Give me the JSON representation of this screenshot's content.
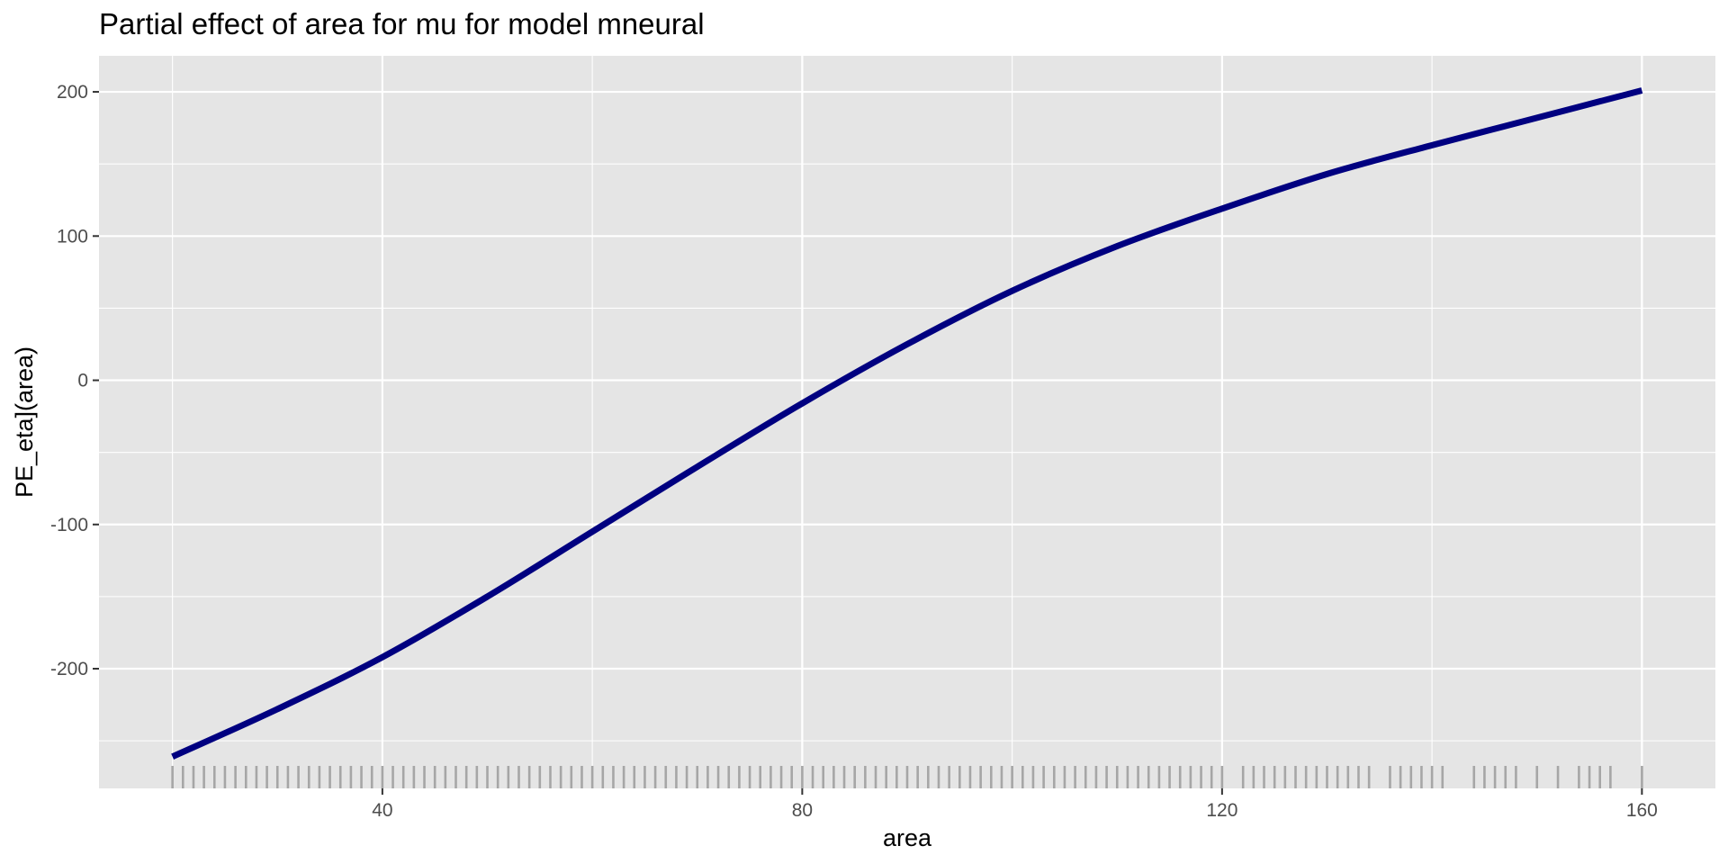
{
  "chart_data": {
    "type": "line",
    "title": "Partial effect of area for mu for model mneural",
    "xlabel": "area",
    "ylabel": "PE_eta](area)",
    "xlim": [
      13,
      167
    ],
    "ylim": [
      -283,
      225
    ],
    "x_ticks": [
      40,
      80,
      120,
      160
    ],
    "x_tick_labels": [
      "40",
      "80",
      "120",
      "160"
    ],
    "y_ticks": [
      -200,
      -100,
      0,
      100,
      200
    ],
    "y_tick_labels": [
      "-200",
      "-100",
      "0",
      "100",
      "200"
    ],
    "grid": true,
    "legend": "none",
    "series": [
      {
        "x": [
          20,
          30,
          40,
          50,
          60,
          70,
          80,
          90,
          100,
          110,
          120,
          130,
          140,
          150,
          160
        ],
        "values": [
          -261,
          -228,
          -192,
          -150,
          -105,
          -60,
          -16,
          25,
          62,
          93,
          119,
          143,
          163,
          182,
          201
        ]
      }
    ],
    "rug": [
      20,
      21,
      22,
      23,
      24,
      25,
      26,
      27,
      28,
      29,
      30,
      31,
      32,
      33,
      34,
      35,
      36,
      37,
      38,
      39,
      40,
      41,
      42,
      43,
      44,
      45,
      46,
      47,
      48,
      49,
      50,
      51,
      52,
      53,
      54,
      55,
      56,
      57,
      58,
      59,
      60,
      61,
      62,
      63,
      64,
      65,
      66,
      67,
      68,
      69,
      70,
      71,
      72,
      73,
      74,
      75,
      76,
      77,
      78,
      79,
      80,
      81,
      82,
      83,
      84,
      85,
      86,
      87,
      88,
      89,
      90,
      91,
      92,
      93,
      94,
      95,
      96,
      97,
      98,
      99,
      100,
      101,
      102,
      103,
      104,
      105,
      106,
      107,
      108,
      109,
      110,
      111,
      112,
      113,
      114,
      115,
      116,
      117,
      118,
      119,
      120,
      122,
      123,
      124,
      125,
      126,
      127,
      128,
      129,
      130,
      131,
      132,
      133,
      134,
      136,
      137,
      138,
      139,
      140,
      141,
      144,
      145,
      146,
      147,
      148,
      150,
      152,
      154,
      155,
      156,
      157,
      160
    ],
    "colors": {
      "line": "#000080",
      "panel_background": "#e5e5e5",
      "gridline": "#ffffff",
      "rug": "#a6a6a6"
    }
  }
}
